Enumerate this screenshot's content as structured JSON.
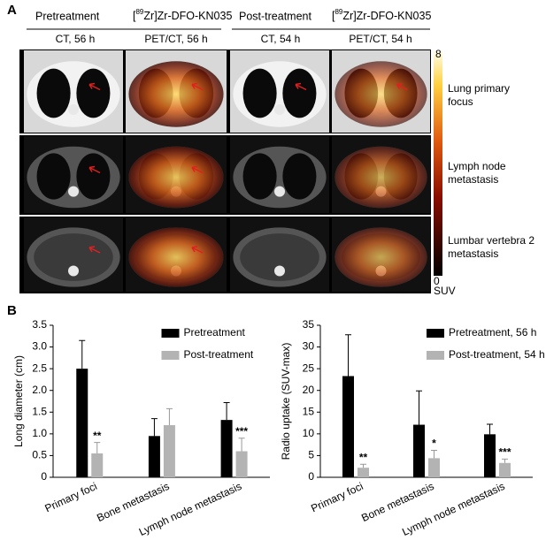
{
  "panel_a": {
    "label": "A",
    "groups": [
      {
        "title": "Pretreatment",
        "tracer": [
          "[",
          "89",
          "Zr]Zr-DFO-KN035"
        ],
        "columns": [
          "CT, 56 h",
          "PET/CT, 56 h"
        ]
      },
      {
        "title": "Post-treatment",
        "tracer": [
          "[",
          "89",
          "Zr]Zr-DFO-KN035"
        ],
        "columns": [
          "CT, 54 h",
          "PET/CT, 54 h"
        ]
      }
    ],
    "colorbar": {
      "max": "8",
      "min": "0",
      "unit": "SUV"
    },
    "rows": [
      "Lung primary focus",
      "Lymph node metastasis",
      "Lumbar vertebra 2 metastasis"
    ]
  },
  "panel_b": {
    "label": "B"
  },
  "chart_data": [
    {
      "type": "bar",
      "ylabel": "Long diameter (cm)",
      "legend": "upper right",
      "categories": [
        "Primary foci",
        "Bone metastasis",
        "Lymph node metastasis"
      ],
      "ylim": [
        0,
        3.5
      ],
      "yticks": [
        0,
        0.5,
        {
          "value": 1,
          "label": "1.0"
        },
        1.5,
        {
          "value": 2,
          "label": "2.0"
        },
        2.5,
        {
          "value": 3,
          "label": "3.0"
        },
        3.5
      ],
      "series": [
        {
          "name": "Pretreatment",
          "color": "#000000",
          "values": [
            2.5,
            0.95,
            1.32
          ],
          "errors": [
            0.65,
            0.4,
            0.4
          ]
        },
        {
          "name": "Post-treatment",
          "color": "#b3b3b3",
          "values": [
            0.55,
            1.2,
            0.6
          ],
          "errors": [
            0.25,
            0.38,
            0.3
          ],
          "annotations": [
            "**",
            null,
            "***"
          ]
        }
      ]
    },
    {
      "type": "bar",
      "ylabel": "Radio uptake (SUV-max)",
      "legend": "upper right",
      "categories": [
        "Primary foci",
        "Bone metastasis",
        "Lymph node metastasis"
      ],
      "ylim": [
        0,
        35
      ],
      "yticks": [
        0,
        5,
        10,
        15,
        20,
        25,
        30,
        35
      ],
      "series": [
        {
          "name": "Pretreatment, 56 h",
          "color": "#000000",
          "values": [
            23.3,
            12.1,
            9.9
          ],
          "errors": [
            9.5,
            7.8,
            2.3
          ]
        },
        {
          "name": "Post-treatment, 54 h",
          "color": "#b3b3b3",
          "values": [
            2.2,
            4.4,
            3.3
          ],
          "errors": [
            0.8,
            1.8,
            0.9
          ],
          "annotations": [
            "**",
            "*",
            "***"
          ]
        }
      ]
    }
  ]
}
